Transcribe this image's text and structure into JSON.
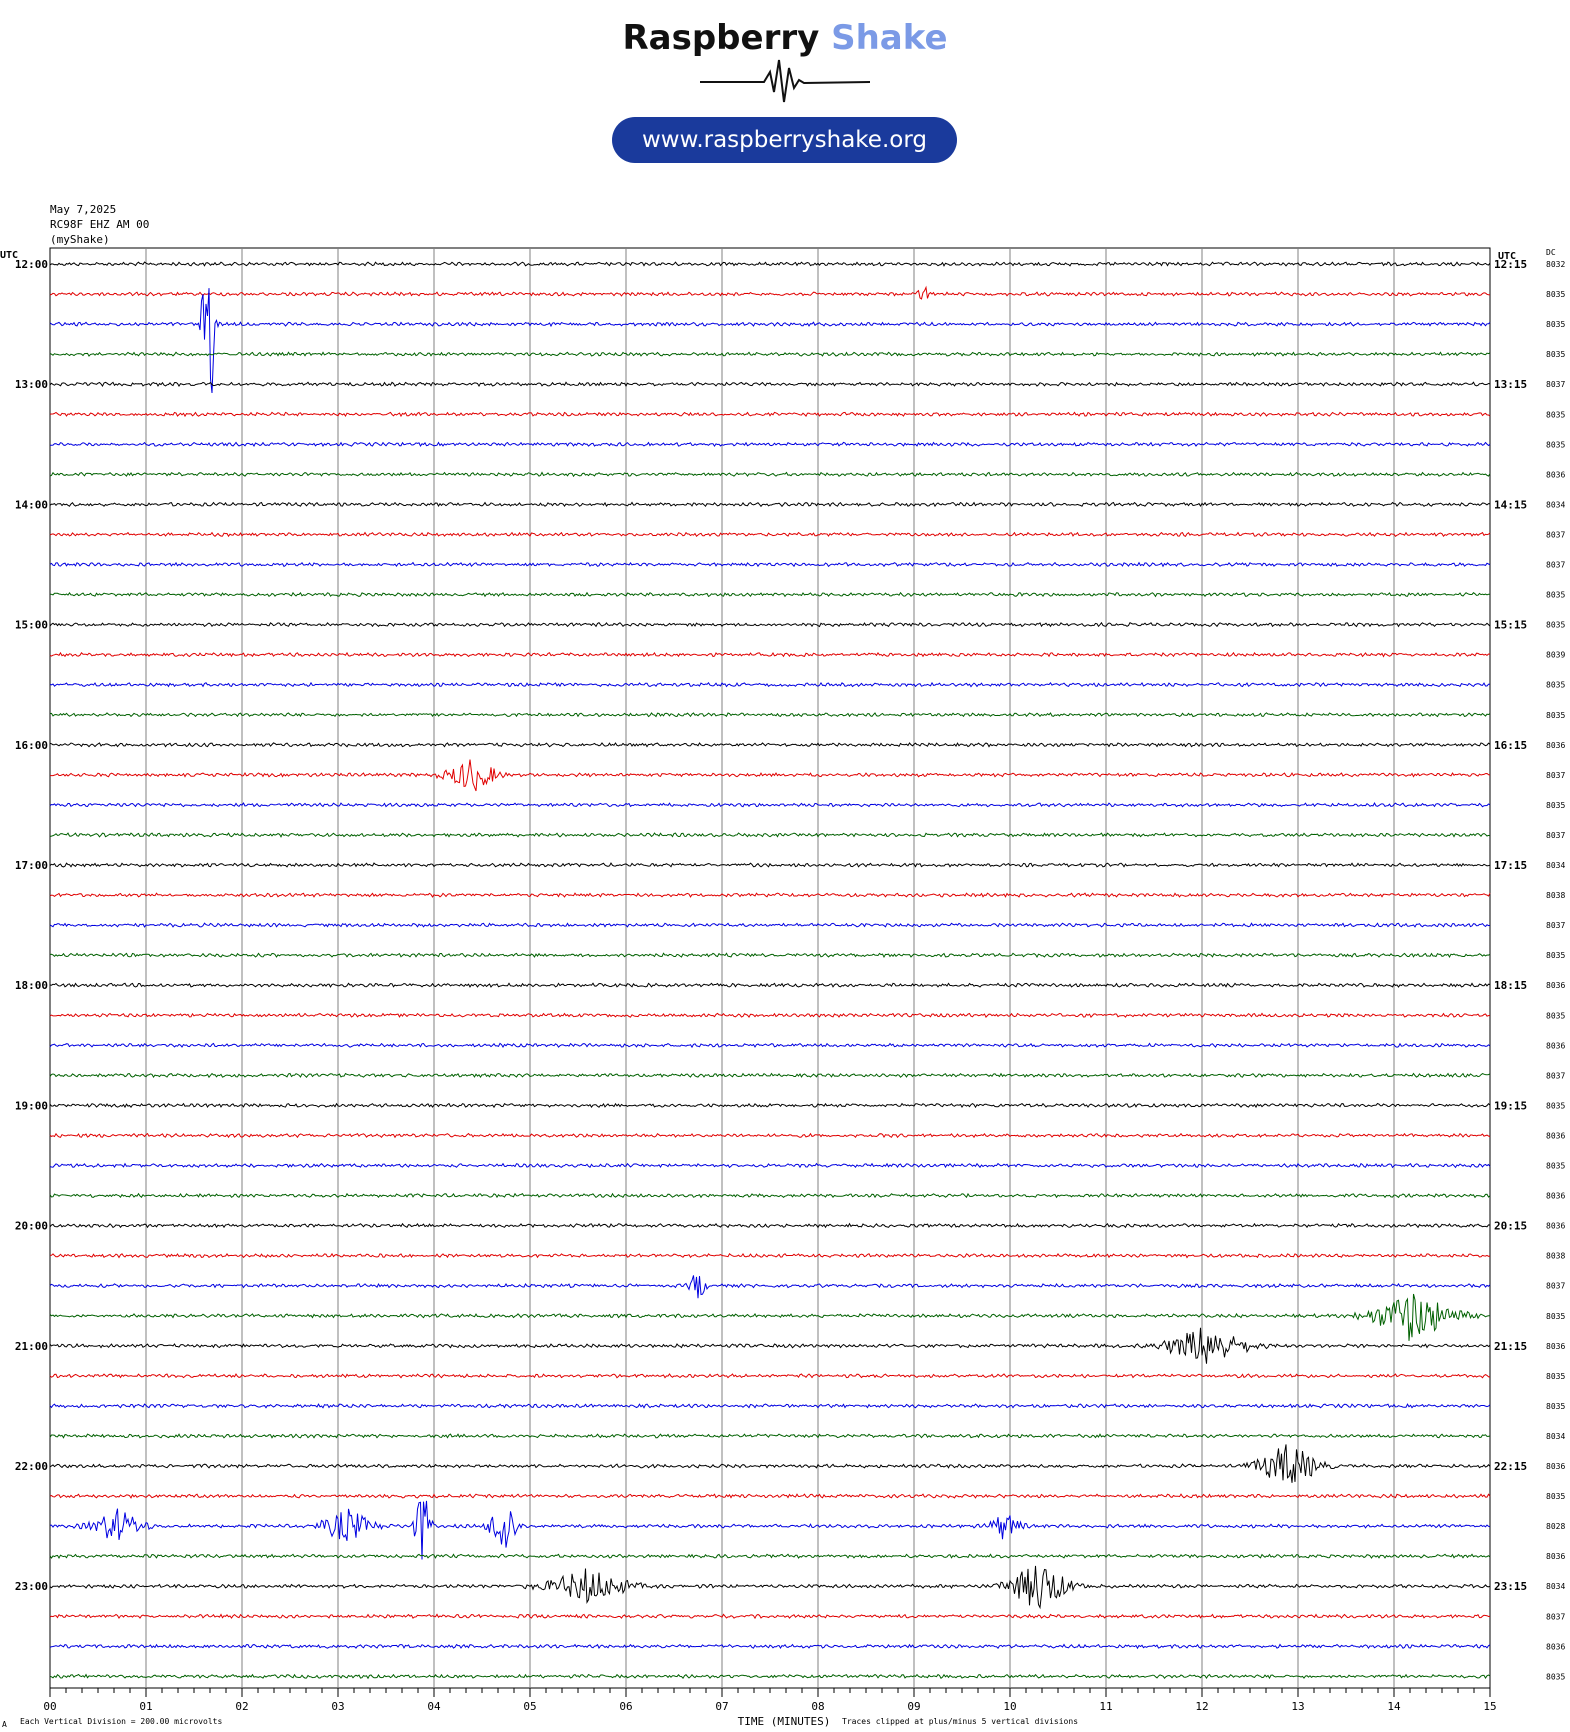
{
  "logo": {
    "brand_part1": "Raspberry",
    "brand_part2": "Shake",
    "url": "www.raspberryshake.org",
    "brand_color": "#7b9ae6",
    "button_color": "#1a3a9c"
  },
  "header": {
    "date": "May 7,2025",
    "station": "RC98F EHZ AM 00",
    "network": "(myShake)"
  },
  "chart_data": {
    "type": "line",
    "x_axis": {
      "label": "TIME (MINUTES)",
      "range": [
        0,
        15
      ],
      "ticks": [
        "00",
        "01",
        "02",
        "03",
        "04",
        "05",
        "06",
        "07",
        "08",
        "09",
        "10",
        "11",
        "12",
        "13",
        "14",
        "15"
      ]
    },
    "left_axis": {
      "header": "UTC",
      "hour_labels": [
        "12:00",
        "13:00",
        "14:00",
        "15:00",
        "16:00",
        "17:00",
        "18:00",
        "19:00",
        "20:00",
        "21:00",
        "22:00",
        "23:00"
      ]
    },
    "right_axis": {
      "header": "UTC",
      "labels": [
        "12:15",
        "13:15",
        "14:15",
        "15:15",
        "16:15",
        "17:15",
        "18:15",
        "19:15",
        "20:15",
        "21:15",
        "22:15",
        "23:15"
      ]
    },
    "dc_header": "DC",
    "dc_values": [
      "8032",
      "8035",
      "8035",
      "8035",
      "8037",
      "8035",
      "8035",
      "8036",
      "8034",
      "8037",
      "8037",
      "8035",
      "8035",
      "8039",
      "8035",
      "8035",
      "8036",
      "8037",
      "8035",
      "8037",
      "8034",
      "8038",
      "8037",
      "8035",
      "8036",
      "8035",
      "8036",
      "8037",
      "8035",
      "8036",
      "8035",
      "8036",
      "8036",
      "8038",
      "8037",
      "8035",
      "8036",
      "8035",
      "8035",
      "8034",
      "8036",
      "8035",
      "8028",
      "8036",
      "8034",
      "8037",
      "8036",
      "8035"
    ],
    "trace_colors": [
      "#000000",
      "#e00000",
      "#0000e0",
      "#006000"
    ],
    "events": [
      {
        "row": 2,
        "minute": 1.65,
        "amp": 5,
        "dur": 0.12
      },
      {
        "row": 1,
        "minute": 9.1,
        "amp": 0.4,
        "dur": 0.1
      },
      {
        "row": 17,
        "minute": 4.4,
        "amp": 0.6,
        "dur": 0.5
      },
      {
        "row": 34,
        "minute": 6.75,
        "amp": 0.6,
        "dur": 0.15
      },
      {
        "row": 35,
        "minute": 14.2,
        "amp": 0.9,
        "dur": 0.8
      },
      {
        "row": 36,
        "minute": 12.05,
        "amp": 0.7,
        "dur": 0.8
      },
      {
        "row": 40,
        "minute": 12.9,
        "amp": 0.8,
        "dur": 0.6
      },
      {
        "row": 42,
        "minute": 0.7,
        "amp": 0.6,
        "dur": 0.5
      },
      {
        "row": 42,
        "minute": 3.1,
        "amp": 0.6,
        "dur": 0.5
      },
      {
        "row": 42,
        "minute": 3.88,
        "amp": 1.5,
        "dur": 0.15
      },
      {
        "row": 42,
        "minute": 4.72,
        "amp": 1.3,
        "dur": 0.25
      },
      {
        "row": 42,
        "minute": 9.95,
        "amp": 0.5,
        "dur": 0.3
      },
      {
        "row": 44,
        "minute": 5.6,
        "amp": 0.6,
        "dur": 0.8
      },
      {
        "row": 44,
        "minute": 10.3,
        "amp": 0.9,
        "dur": 0.6
      }
    ],
    "footer": {
      "division_note": "Each Vertical Division =  200.00 microvolts",
      "clip_note": "Traces clipped at plus/minus 5 vertical divisions",
      "corner_mark": "A"
    }
  }
}
